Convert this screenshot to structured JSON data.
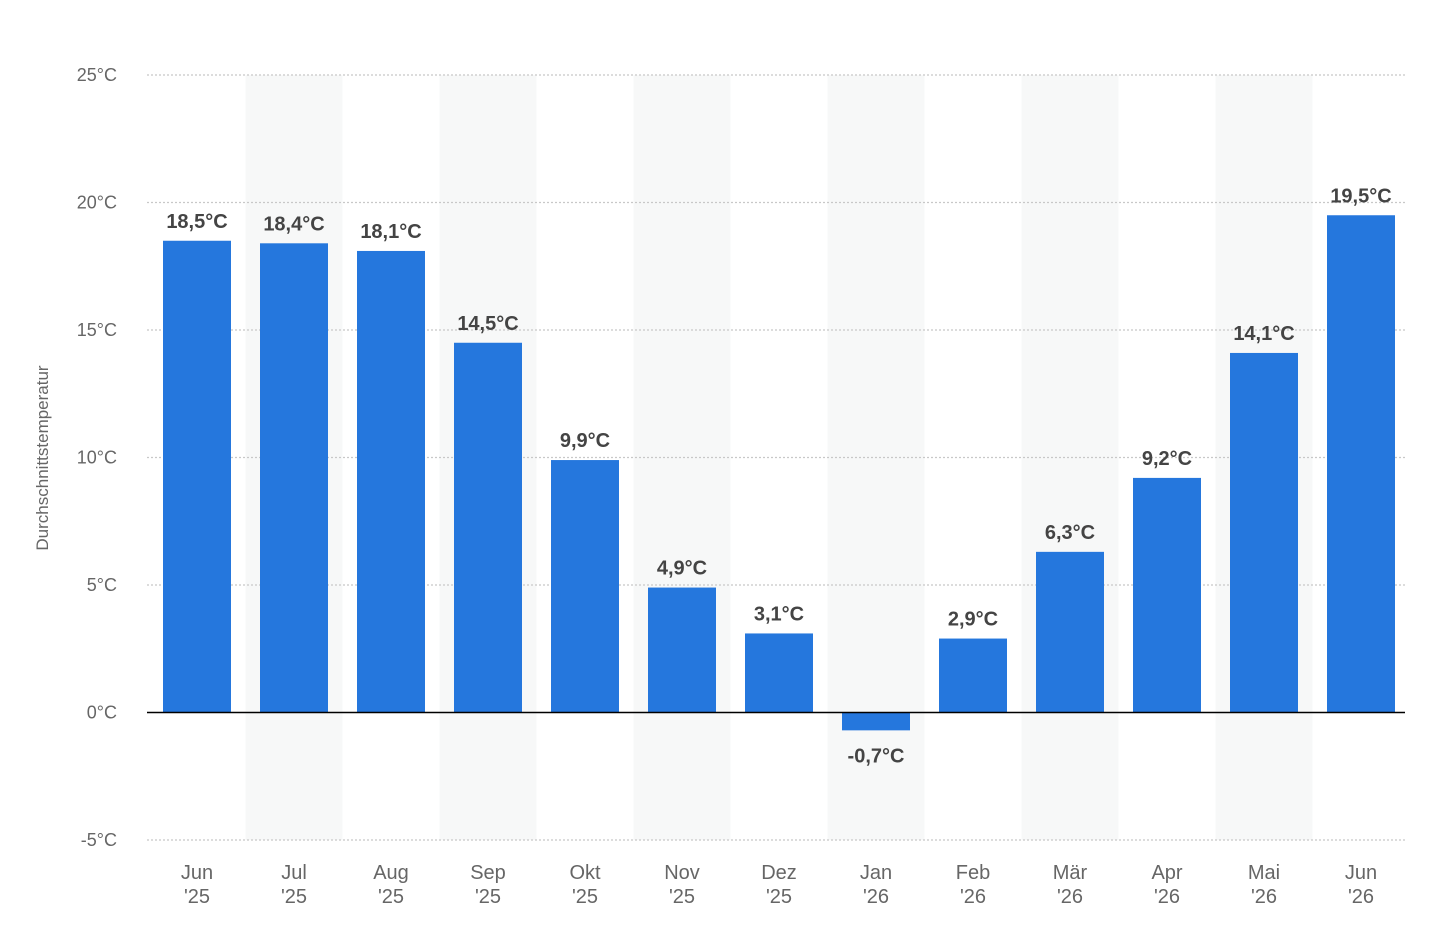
{
  "chart_data": {
    "type": "bar",
    "title": "",
    "xlabel": "",
    "ylabel": "Durchschnittstemperatur",
    "categories": [
      [
        "Jun",
        "'25"
      ],
      [
        "Jul",
        "'25"
      ],
      [
        "Aug",
        "'25"
      ],
      [
        "Sep",
        "'25"
      ],
      [
        "Okt",
        "'25"
      ],
      [
        "Nov",
        "'25"
      ],
      [
        "Dez",
        "'25"
      ],
      [
        "Jan",
        "'26"
      ],
      [
        "Feb",
        "'26"
      ],
      [
        "Mär",
        "'26"
      ],
      [
        "Apr",
        "'26"
      ],
      [
        "Mai",
        "'26"
      ],
      [
        "Jun",
        "'26"
      ]
    ],
    "values": [
      18.5,
      18.4,
      18.1,
      14.5,
      9.9,
      4.9,
      3.1,
      -0.7,
      2.9,
      6.3,
      9.2,
      14.1,
      19.5
    ],
    "value_labels": [
      "18,5°C",
      "18,4°C",
      "18,1°C",
      "14,5°C",
      "9,9°C",
      "4,9°C",
      "3,1°C",
      "-0,7°C",
      "2,9°C",
      "6,3°C",
      "9,2°C",
      "14,1°C",
      "19,5°C"
    ],
    "ylim": [
      -5,
      25
    ],
    "yticks": [
      {
        "value": 25,
        "label": "25°C"
      },
      {
        "value": 20,
        "label": "20°C"
      },
      {
        "value": 15,
        "label": "15°C"
      },
      {
        "value": 10,
        "label": "10°C"
      },
      {
        "value": 5,
        "label": "5°C"
      },
      {
        "value": 0,
        "label": "0°C"
      },
      {
        "value": -5,
        "label": "-5°C"
      }
    ],
    "grid": true,
    "legend": "none",
    "colors": {
      "bar": "#2577dd",
      "value_label": "#444444",
      "tick_label": "#666666",
      "grid": "#c8c8c8",
      "zero_line": "#000000",
      "band": "#f7f8f8"
    }
  }
}
